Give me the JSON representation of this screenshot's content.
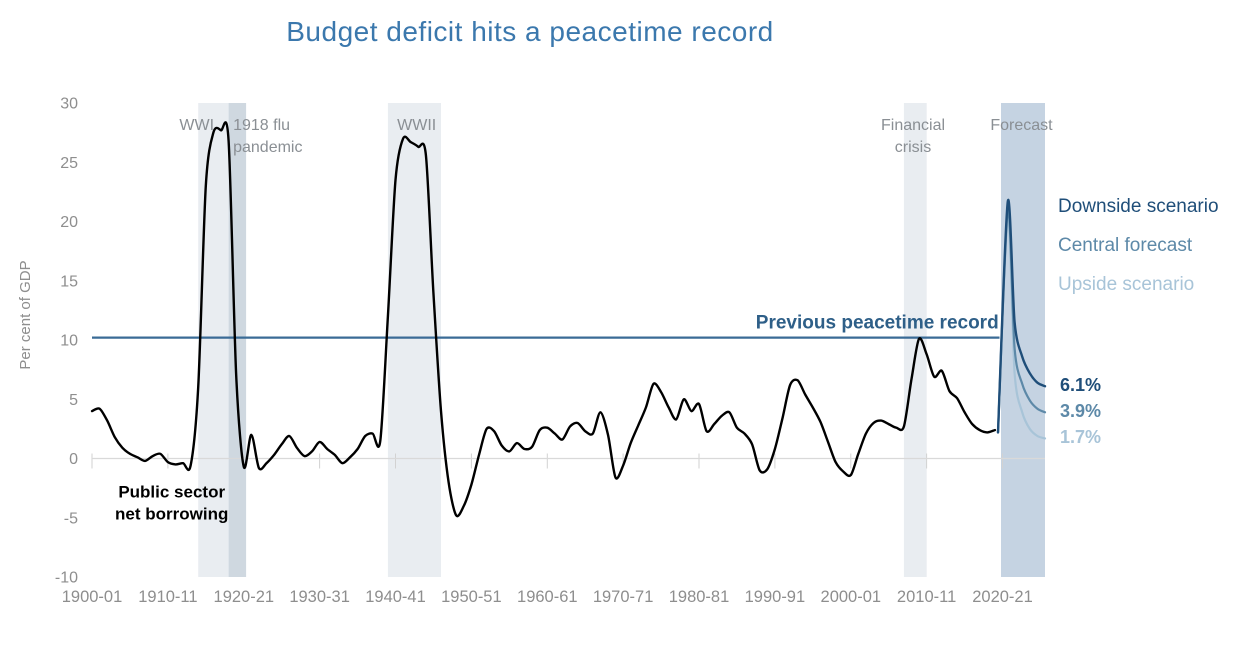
{
  "title": "Budget deficit hits a peacetime record",
  "colors": {
    "title": "#3b78ad",
    "axis_text": "#8e8e8e",
    "annotation_text": "#8a8f94",
    "zero_line": "#d9d9d9",
    "tick": "#d2d2d2",
    "band_light": "#e9edf1",
    "band_dark": "#cfd8e0",
    "band_forecast": "#c5d3e2",
    "record_line": "#3a6b96",
    "record_label": "#2e5f88",
    "main_line": "#000000",
    "downside": "#1f4e79",
    "central": "#5d89a8",
    "upside": "#a8c4d8",
    "borrowing_label": "#000000"
  },
  "chart_data": {
    "type": "line",
    "title": "Budget deficit hits a peacetime record",
    "xlabel": "",
    "ylabel": "Per cent of GDP",
    "ylim": [
      -10,
      30
    ],
    "yticks": [
      30,
      25,
      20,
      15,
      10,
      5,
      0,
      -5,
      -10
    ],
    "xlim": [
      1900,
      2025.6
    ],
    "xticks": [
      {
        "year": 1900,
        "label": "1900-01"
      },
      {
        "year": 1910,
        "label": "1910-11"
      },
      {
        "year": 1920,
        "label": "1920-21"
      },
      {
        "year": 1930,
        "label": "1930-31"
      },
      {
        "year": 1940,
        "label": "1940-41"
      },
      {
        "year": 1950,
        "label": "1950-51"
      },
      {
        "year": 1960,
        "label": "1960-61"
      },
      {
        "year": 1970,
        "label": "1970-71"
      },
      {
        "year": 1980,
        "label": "1980-81"
      },
      {
        "year": 1990,
        "label": "1990-91"
      },
      {
        "year": 2000,
        "label": "2000-01"
      },
      {
        "year": 2010,
        "label": "2010-11"
      },
      {
        "year": 2020,
        "label": "2020-21"
      }
    ],
    "bands": [
      {
        "name": "WWI",
        "from": 1914,
        "to": 1918,
        "tone": "light",
        "label_lines": [
          "WWI"
        ],
        "label_x": 1913.8,
        "label_anchor": "middle"
      },
      {
        "name": "1918 flu pandemic",
        "from": 1918,
        "to": 1920.3,
        "tone": "dark",
        "label_lines": [
          "1918 flu",
          "pandemic"
        ],
        "label_x": 1918.6,
        "label_anchor": "start"
      },
      {
        "name": "WWII",
        "from": 1939,
        "to": 1946,
        "tone": "light",
        "label_lines": [
          "WWII"
        ],
        "label_x": 1942.8,
        "label_anchor": "middle"
      },
      {
        "name": "Financial crisis",
        "from": 2007,
        "to": 2010,
        "tone": "light",
        "label_lines": [
          "Financial",
          "crisis"
        ],
        "label_x": 2008.2,
        "label_anchor": "middle"
      },
      {
        "name": "Forecast",
        "from": 2019.8,
        "to": 2025.6,
        "tone": "forecast",
        "label_lines": [
          "Forecast"
        ],
        "label_x": 2022.5,
        "label_anchor": "middle"
      }
    ],
    "record_line": {
      "label": "Previous peacetime record",
      "value": 10.2,
      "from": 1900,
      "to": 2019.6,
      "label_x": 2019.5
    },
    "series_label": {
      "lines": [
        "Public sector",
        "net borrowing"
      ],
      "x": 1910.5,
      "y": -3.3
    },
    "series": [
      {
        "name": "Public sector net borrowing",
        "color_key": "main_line",
        "width": 2.4,
        "x_start": 1900,
        "values": [
          4.0,
          4.2,
          3.2,
          1.8,
          0.9,
          0.4,
          0.1,
          -0.2,
          0.2,
          0.4,
          -0.3,
          -0.5,
          -0.4,
          -0.6,
          6.0,
          23.0,
          27.5,
          27.7,
          26.8,
          7.0,
          -0.7,
          2.0,
          -0.8,
          -0.4,
          0.3,
          1.2,
          1.9,
          0.9,
          0.2,
          0.6,
          1.4,
          0.8,
          0.3,
          -0.4,
          0.1,
          0.8,
          1.9,
          2.1,
          1.5,
          12.0,
          23.5,
          27.0,
          26.7,
          26.3,
          25.6,
          14.0,
          4.0,
          -2.0,
          -4.8,
          -4.0,
          -2.2,
          0.3,
          2.5,
          2.3,
          1.1,
          0.6,
          1.3,
          0.8,
          1.0,
          2.4,
          2.6,
          2.1,
          1.6,
          2.7,
          3.0,
          2.3,
          2.1,
          3.9,
          2.0,
          -1.6,
          -0.6,
          1.3,
          2.8,
          4.3,
          6.3,
          5.6,
          4.3,
          3.3,
          5.0,
          4.0,
          4.6,
          2.3,
          2.9,
          3.6,
          3.9,
          2.6,
          2.1,
          1.2,
          -1.0,
          -0.9,
          0.8,
          3.4,
          6.2,
          6.6,
          5.4,
          4.3,
          3.1,
          1.4,
          -0.3,
          -1.1,
          -1.4,
          0.4,
          2.1,
          3.0,
          3.2,
          2.9,
          2.6,
          2.7,
          6.7,
          10.1,
          8.8,
          6.9,
          7.4,
          5.7,
          5.1,
          3.9,
          2.9,
          2.4,
          2.2,
          2.4
        ]
      },
      {
        "name": "Upside scenario",
        "color_key": "upside",
        "width": 2.2,
        "x": [
          2019.4,
          2020.7,
          2021.6,
          2022.6,
          2023.6,
          2024.6,
          2025.6
        ],
        "values": [
          2.2,
          20.3,
          7.2,
          3.9,
          2.5,
          1.9,
          1.7
        ]
      },
      {
        "name": "Central forecast",
        "color_key": "central",
        "width": 2.2,
        "x": [
          2019.4,
          2020.7,
          2021.6,
          2022.6,
          2023.6,
          2024.6,
          2025.6
        ],
        "values": [
          2.2,
          21.0,
          9.3,
          6.3,
          4.9,
          4.2,
          3.9
        ]
      },
      {
        "name": "Downside scenario",
        "color_key": "downside",
        "width": 2.4,
        "x": [
          2019.4,
          2020.7,
          2021.6,
          2022.6,
          2023.6,
          2024.6,
          2025.6
        ],
        "values": [
          2.2,
          21.7,
          11.5,
          8.6,
          7.2,
          6.4,
          6.1
        ]
      }
    ],
    "legend": [
      {
        "label": "Downside scenario",
        "color_key": "downside"
      },
      {
        "label": "Central forecast",
        "color_key": "central"
      },
      {
        "label": "Upside scenario",
        "color_key": "upside"
      }
    ],
    "end_labels": [
      {
        "text": "6.1%",
        "color_key": "downside"
      },
      {
        "text": "3.9%",
        "color_key": "central"
      },
      {
        "text": "1.7%",
        "color_key": "upside"
      }
    ]
  }
}
